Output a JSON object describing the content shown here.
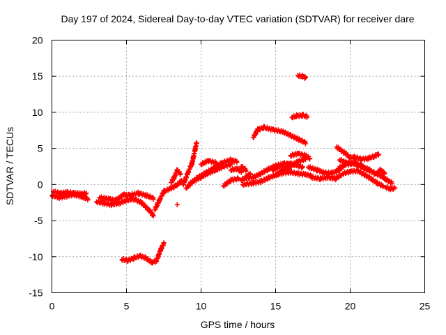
{
  "chart_data": {
    "type": "scatter",
    "title": "Day 197 of 2024, Sidereal Day-to-day VTEC variation (SDTVAR) for receiver dare",
    "xlabel": "GPS time / hours",
    "ylabel": "SDTVAR / TECUs",
    "xlim": [
      0,
      25
    ],
    "ylim": [
      -15,
      20
    ],
    "xticks": [
      "0",
      "5",
      "10",
      "15",
      "20",
      "25"
    ],
    "yticks": [
      "-15",
      "-10",
      "-5",
      "0",
      "5",
      "10",
      "15",
      "20"
    ],
    "grid": true,
    "marker": "+",
    "series": [
      {
        "name": "SDTVAR",
        "color": "#ff0000",
        "segments": [
          [
            [
              0.0,
              -1.5
            ],
            [
              0.5,
              -1.8
            ],
            [
              1.0,
              -1.6
            ],
            [
              1.5,
              -1.4
            ],
            [
              2.0,
              -1.7
            ],
            [
              2.4,
              -2.0
            ]
          ],
          [
            [
              0.1,
              -1.0
            ],
            [
              0.5,
              -1.2
            ],
            [
              1.0,
              -1.1
            ],
            [
              1.5,
              -1.2
            ],
            [
              2.0,
              -1.3
            ],
            [
              2.3,
              -1.2
            ]
          ],
          [
            [
              3.0,
              -2.4
            ],
            [
              3.5,
              -2.6
            ],
            [
              4.0,
              -2.8
            ],
            [
              4.5,
              -2.6
            ],
            [
              5.0,
              -2.2
            ],
            [
              5.5,
              -2.0
            ],
            [
              6.0,
              -2.5
            ],
            [
              6.5,
              -3.5
            ],
            [
              6.8,
              -4.3
            ]
          ],
          [
            [
              3.2,
              -1.8
            ],
            [
              3.8,
              -2.0
            ],
            [
              4.3,
              -2.2
            ],
            [
              4.8,
              -1.4
            ],
            [
              5.2,
              -1.5
            ],
            [
              5.8,
              -1.2
            ],
            [
              6.3,
              -1.5
            ],
            [
              6.8,
              -1.9
            ]
          ],
          [
            [
              4.7,
              -10.4
            ],
            [
              5.1,
              -10.5
            ],
            [
              5.5,
              -10.2
            ],
            [
              5.9,
              -9.9
            ],
            [
              6.3,
              -10.2
            ],
            [
              6.7,
              -10.8
            ],
            [
              7.0,
              -10.6
            ],
            [
              7.3,
              -9.0
            ],
            [
              7.5,
              -8.2
            ]
          ],
          [
            [
              6.9,
              -3.5
            ],
            [
              7.2,
              -2.2
            ],
            [
              7.5,
              -1.0
            ],
            [
              7.9,
              -0.6
            ],
            [
              8.3,
              -0.2
            ],
            [
              8.7,
              0.5
            ]
          ],
          [
            [
              8.0,
              0.3
            ],
            [
              8.2,
              1.0
            ],
            [
              8.4,
              2.0
            ],
            [
              8.6,
              1.5
            ]
          ],
          [
            [
              8.4,
              -2.8
            ]
          ],
          [
            [
              8.8,
              0.0
            ],
            [
              9.1,
              1.5
            ],
            [
              9.4,
              3.0
            ],
            [
              9.6,
              4.8
            ],
            [
              9.7,
              5.8
            ]
          ],
          [
            [
              9.0,
              -0.5
            ],
            [
              9.5,
              0.5
            ],
            [
              10.0,
              1.0
            ],
            [
              10.5,
              1.6
            ],
            [
              11.0,
              2.0
            ],
            [
              11.5,
              2.5
            ],
            [
              12.0,
              2.8
            ]
          ],
          [
            [
              9.2,
              0.0
            ],
            [
              9.8,
              1.0
            ],
            [
              10.3,
              1.6
            ],
            [
              10.8,
              2.2
            ],
            [
              11.4,
              3.0
            ],
            [
              12.0,
              3.4
            ],
            [
              12.4,
              3.2
            ]
          ],
          [
            [
              10.0,
              2.8
            ],
            [
              10.5,
              3.3
            ],
            [
              11.0,
              3.0
            ]
          ],
          [
            [
              11.5,
              -0.2
            ],
            [
              12.0,
              0.6
            ],
            [
              12.5,
              0.8
            ]
          ],
          [
            [
              12.7,
              2.5
            ],
            [
              13.0,
              2.0
            ]
          ],
          [
            [
              12.0,
              2.0
            ],
            [
              12.4,
              2.2
            ],
            [
              12.7,
              1.8
            ]
          ],
          [
            [
              12.7,
              0.6
            ],
            [
              13.0,
              1.0
            ],
            [
              13.3,
              1.5
            ]
          ],
          [
            [
              13.5,
              6.5
            ],
            [
              13.8,
              7.6
            ],
            [
              14.2,
              7.9
            ],
            [
              14.8,
              7.6
            ],
            [
              15.5,
              7.3
            ],
            [
              16.0,
              6.8
            ],
            [
              16.5,
              6.3
            ],
            [
              17.0,
              5.8
            ]
          ],
          [
            [
              12.8,
              0.0
            ],
            [
              13.5,
              0.2
            ],
            [
              14.0,
              0.4
            ],
            [
              14.5,
              0.9
            ],
            [
              15.0,
              1.3
            ],
            [
              15.5,
              2.0
            ],
            [
              16.0,
              2.5
            ],
            [
              16.5,
              3.2
            ],
            [
              17.0,
              3.5
            ]
          ],
          [
            [
              13.0,
              0.9
            ],
            [
              13.5,
              1.0
            ],
            [
              14.0,
              1.5
            ],
            [
              14.5,
              2.1
            ],
            [
              15.0,
              2.6
            ],
            [
              15.6,
              2.9
            ],
            [
              16.2,
              2.8
            ],
            [
              16.8,
              2.4
            ]
          ],
          [
            [
              14.8,
              2.0
            ],
            [
              15.4,
              2.6
            ],
            [
              16.0,
              2.8
            ]
          ],
          [
            [
              15.0,
              1.3
            ],
            [
              15.5,
              1.6
            ],
            [
              16.0,
              1.7
            ],
            [
              16.5,
              1.5
            ],
            [
              17.0,
              1.4
            ],
            [
              17.4,
              1.2
            ]
          ],
          [
            [
              16.0,
              4.0
            ],
            [
              16.5,
              4.3
            ],
            [
              17.0,
              4.0
            ],
            [
              17.3,
              3.6
            ]
          ],
          [
            [
              16.1,
              9.3
            ],
            [
              16.4,
              9.5
            ],
            [
              16.8,
              9.6
            ],
            [
              17.1,
              9.4
            ]
          ],
          [
            [
              16.5,
              15.1
            ],
            [
              16.8,
              15.0
            ],
            [
              17.0,
              14.8
            ]
          ],
          [
            [
              17.2,
              2.4
            ],
            [
              17.8,
              2.0
            ],
            [
              18.3,
              1.6
            ],
            [
              18.8,
              1.6
            ],
            [
              19.2,
              1.9
            ],
            [
              19.5,
              2.5
            ]
          ],
          [
            [
              17.4,
              1.0
            ],
            [
              18.0,
              0.8
            ],
            [
              18.5,
              1.0
            ],
            [
              19.0,
              0.8
            ],
            [
              19.4,
              1.3
            ]
          ],
          [
            [
              19.1,
              5.2
            ],
            [
              19.4,
              4.7
            ],
            [
              19.7,
              4.3
            ],
            [
              20.0,
              3.7
            ],
            [
              20.3,
              3.8
            ],
            [
              20.7,
              3.5
            ],
            [
              21.2,
              3.6
            ],
            [
              21.6,
              3.9
            ],
            [
              21.9,
              4.2
            ]
          ],
          [
            [
              19.2,
              2.2
            ],
            [
              19.7,
              2.8
            ],
            [
              20.2,
              2.9
            ],
            [
              20.7,
              2.6
            ],
            [
              21.2,
              2.0
            ],
            [
              21.6,
              1.6
            ],
            [
              22.0,
              1.3
            ],
            [
              22.4,
              0.7
            ],
            [
              22.8,
              0.2
            ]
          ],
          [
            [
              19.3,
              3.4
            ],
            [
              19.8,
              3.0
            ],
            [
              20.3,
              3.0
            ],
            [
              20.8,
              2.5
            ],
            [
              21.3,
              2.0
            ]
          ],
          [
            [
              19.5,
              1.5
            ],
            [
              20.0,
              1.8
            ],
            [
              20.5,
              1.9
            ],
            [
              21.0,
              1.3
            ],
            [
              21.4,
              0.8
            ],
            [
              21.8,
              0.2
            ],
            [
              22.2,
              -0.2
            ]
          ],
          [
            [
              21.8,
              1.5
            ],
            [
              22.0,
              2.0
            ],
            [
              22.3,
              1.6
            ]
          ],
          [
            [
              22.4,
              -0.4
            ],
            [
              22.7,
              -0.6
            ],
            [
              23.0,
              -0.5
            ]
          ]
        ]
      }
    ]
  }
}
